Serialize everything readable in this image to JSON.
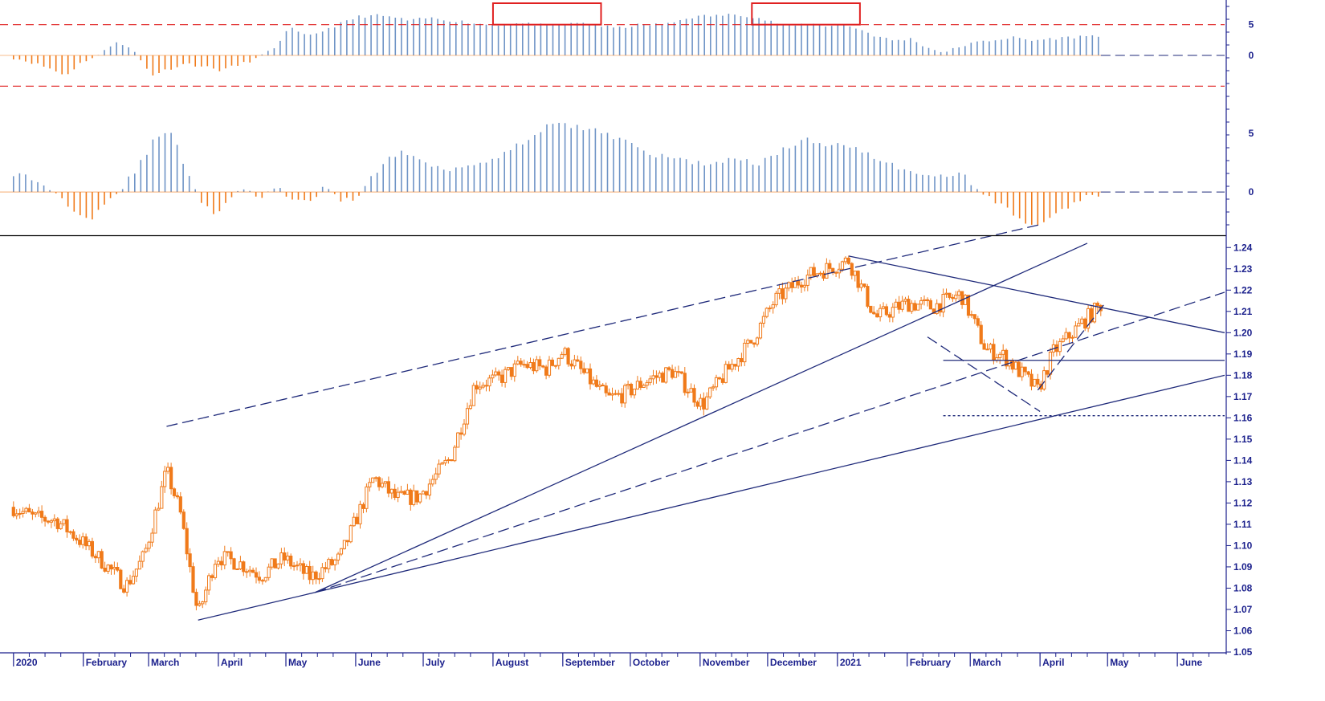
{
  "colors": {
    "background": "#ffffff",
    "candle": "#f07a1a",
    "bar_positive": "#6f94c6",
    "bar_negative": "#f07a1a",
    "trendline": "#1f2a7a",
    "reference_line": "#e02020",
    "highlight_box": "#e02020",
    "axis": "#1a1f8c"
  },
  "chart_data": [
    {
      "type": "bar",
      "panel": "top-oscillator",
      "ylim": [
        -9,
        9
      ],
      "yticks": [
        "5",
        "0"
      ],
      "reference_levels": [
        5,
        -5
      ],
      "highlights": [
        {
          "from": "2020-08-01",
          "to": "2020-09-18"
        },
        {
          "from": "2020-11-24",
          "to": "2021-01-11"
        }
      ],
      "series": [
        {
          "start": "2020-01-01",
          "values": [
            -0.4,
            -1.1,
            -2.0,
            -3.3,
            -1.0,
            0.1,
            2.4,
            0.6,
            -3.2,
            -2.2,
            -1.3,
            -1.8,
            -2.4,
            -1.6,
            -0.6,
            0.9,
            4.5,
            3.0,
            4.1,
            5.2,
            6.3,
            6.5,
            6.2,
            5.6,
            6.1,
            5.8,
            5.5,
            5.1,
            5.0,
            5.2,
            5.1,
            4.8,
            5.0,
            5.3,
            4.8,
            4.4,
            4.9,
            5.0,
            5.1,
            6.1,
            6.4,
            6.5,
            6.7,
            6.2,
            5.4,
            4.7,
            5.2,
            4.8,
            5.1,
            4.3,
            3.1,
            2.4,
            2.7,
            1.2,
            0.5,
            1.6,
            2.2,
            2.6,
            2.9,
            2.4,
            2.7,
            2.9,
            3.1,
            3.3
          ]
        }
      ]
    },
    {
      "type": "bar",
      "panel": "middle-oscillator",
      "ylim": [
        -3.7,
        6.8
      ],
      "yticks": [
        "5",
        "0"
      ],
      "series": [
        {
          "start": "2020-01-01",
          "values": [
            1.6,
            1.2,
            0.6,
            -0.5,
            -1.6,
            -2.2,
            -0.8,
            0.4,
            2.1,
            4.3,
            5.4,
            2.4,
            -0.6,
            -2.0,
            -0.4,
            0.2,
            -0.5,
            0.3,
            -0.6,
            -1.0,
            0.4,
            -0.8,
            -0.5,
            1.2,
            2.6,
            3.5,
            2.8,
            2.3,
            2.0,
            2.2,
            2.5,
            3.0,
            3.6,
            4.4,
            5.4,
            5.8,
            5.6,
            5.4,
            5.0,
            4.6,
            4.2,
            3.1,
            3.0,
            2.8,
            2.5,
            2.4,
            2.8,
            2.6,
            2.5,
            3.2,
            3.9,
            4.5,
            4.0,
            4.2,
            4.0,
            3.3,
            2.6,
            2.1,
            1.8,
            1.2,
            1.4,
            1.6,
            0.4,
            -0.7,
            -1.5,
            -2.4,
            -3.1,
            -2.0,
            -1.1,
            -0.5,
            -0.2
          ]
        }
      ]
    },
    {
      "type": "candlestick",
      "panel": "price",
      "ylim": [
        1.05,
        1.245
      ],
      "yticks": [
        "1.24",
        "1.23",
        "1.22",
        "1.21",
        "1.20",
        "1.19",
        "1.18",
        "1.17",
        "1.16",
        "1.15",
        "1.14",
        "1.13",
        "1.12",
        "1.11",
        "1.10",
        "1.09",
        "1.08",
        "1.07",
        "1.06",
        "1.05"
      ],
      "x_start": "2019-12-26",
      "x_end": "2021-06-22",
      "months": [
        "2020",
        "February",
        "March",
        "April",
        "May",
        "June",
        "July",
        "August",
        "September",
        "October",
        "November",
        "December",
        "2021",
        "February",
        "March",
        "April",
        "May",
        "June"
      ],
      "series": [
        {
          "name": "",
          "dates": [
            "2020-01-01",
            "2020-01-10",
            "2020-01-20",
            "2020-01-30",
            "2020-02-10",
            "2020-02-20",
            "2020-02-28",
            "2020-03-09",
            "2020-03-15",
            "2020-03-23",
            "2020-03-31",
            "2020-04-10",
            "2020-04-20",
            "2020-04-30",
            "2020-05-12",
            "2020-05-25",
            "2020-06-09",
            "2020-06-19",
            "2020-06-29",
            "2020-07-13",
            "2020-07-24",
            "2020-08-03",
            "2020-08-14",
            "2020-08-25",
            "2020-09-01",
            "2020-09-10",
            "2020-09-21",
            "2020-09-28",
            "2020-10-09",
            "2020-10-20",
            "2020-11-02",
            "2020-11-13",
            "2020-11-24",
            "2020-12-04",
            "2020-12-17",
            "2021-01-06",
            "2021-01-18",
            "2021-02-01",
            "2021-02-12",
            "2021-02-25",
            "2021-03-08",
            "2021-03-16",
            "2021-03-31",
            "2021-04-07",
            "2021-04-20",
            "2021-04-28"
          ],
          "values": [
            1.118,
            1.113,
            1.112,
            1.103,
            1.092,
            1.081,
            1.095,
            1.135,
            1.116,
            1.067,
            1.095,
            1.092,
            1.086,
            1.094,
            1.085,
            1.094,
            1.132,
            1.122,
            1.123,
            1.141,
            1.176,
            1.178,
            1.185,
            1.183,
            1.191,
            1.181,
            1.169,
            1.171,
            1.178,
            1.182,
            1.166,
            1.182,
            1.196,
            1.215,
            1.226,
            1.234,
            1.207,
            1.214,
            1.212,
            1.218,
            1.192,
            1.189,
            1.173,
            1.191,
            1.205,
            1.213
          ]
        }
      ],
      "trendlines": [
        {
          "from": [
            "2020-03-23",
            1.065
          ],
          "to": [
            "2020-05-14",
            1.078
          ],
          "style": "solid"
        },
        {
          "from": [
            "2020-05-14",
            1.078
          ],
          "to": [
            "2021-04-22",
            1.242
          ],
          "style": "solid"
        },
        {
          "from": [
            "2020-05-14",
            1.078
          ],
          "to": [
            "2021-06-22",
            1.219
          ],
          "style": "dashed"
        },
        {
          "from": [
            "2020-05-14",
            1.078
          ],
          "to": [
            "2021-06-22",
            1.18
          ],
          "style": "solid"
        },
        {
          "from": [
            "2020-03-09",
            1.156
          ],
          "to": [
            "2021-04-02",
            1.251
          ],
          "style": "dashed"
        },
        {
          "from": [
            "2021-01-06",
            1.236
          ],
          "to": [
            "2021-06-22",
            1.2
          ],
          "style": "solid"
        },
        {
          "from": [
            "2021-02-17",
            1.187
          ],
          "to": [
            "2021-06-22",
            1.187
          ],
          "style": "solid"
        },
        {
          "from": [
            "2021-02-17",
            1.161
          ],
          "to": [
            "2021-06-22",
            1.161
          ],
          "style": "dotted"
        },
        {
          "from": [
            "2021-02-10",
            1.198
          ],
          "to": [
            "2021-04-01",
            1.163
          ],
          "style": "dashed"
        },
        {
          "from": [
            "2021-03-31",
            1.173
          ],
          "to": [
            "2021-04-30",
            1.214
          ],
          "style": "dashed"
        }
      ]
    }
  ]
}
